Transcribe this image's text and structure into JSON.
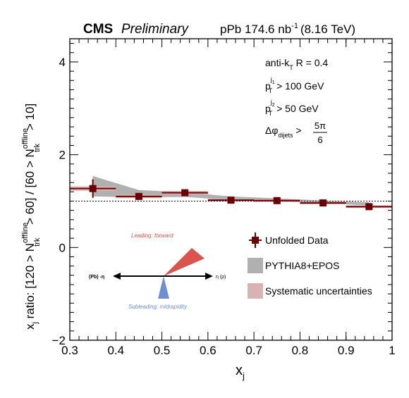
{
  "chart_data": {
    "type": "scatter",
    "header": {
      "experiment": "CMS",
      "status": "Preliminary",
      "lumi_prefix": "pPb 174.6 nb",
      "lumi_exp": "-1",
      "energy": "(8.16 TeV)"
    },
    "xlabel": {
      "base": "x",
      "sub": "j"
    },
    "ylabel": {
      "p1": "x",
      "p1sub": "j",
      "p2": " ratio: [120 > N",
      "p3sup": "offline",
      "p3sub": "trk",
      "p4": " > 60] / [60 > N",
      "p5sup": "offline",
      "p5sub": "trk",
      "p6": " > 10]"
    },
    "xlim": [
      0.3,
      1.0
    ],
    "ylim": [
      -2,
      4.5
    ],
    "xticks": [
      "0.3",
      "0.4",
      "0.5",
      "0.6",
      "0.7",
      "0.8",
      "0.9",
      "1"
    ],
    "yticks": [
      "−2",
      "0",
      "2",
      "4"
    ],
    "reference_line": 1,
    "cuts": {
      "line1": {
        "a": "anti-k",
        "asub": "T",
        "b": " R = 0.4"
      },
      "line2": {
        "a": "p",
        "asup": "j",
        "asupsub": "1",
        "asub": "T",
        "b": " > 100 GeV"
      },
      "line3": {
        "a": "p",
        "asup": "j",
        "asupsub": "2",
        "asub": "T",
        "b": " > 50 GeV"
      },
      "line4": {
        "a": "Δφ",
        "asub": "dijets",
        "b": " > ",
        "num": "5π",
        "den": "6"
      }
    },
    "series": [
      {
        "name": "Unfolded Data",
        "color": "#6b0000",
        "x": [
          0.35,
          0.45,
          0.55,
          0.65,
          0.75,
          0.85,
          0.95
        ],
        "y": [
          1.27,
          1.1,
          1.18,
          1.02,
          1.01,
          0.96,
          0.88
        ],
        "xerr": 0.05,
        "yerr": [
          0.2,
          0.07,
          0.06,
          0.04,
          0.04,
          0.05,
          0.03
        ],
        "syst": [
          0.05,
          0.04,
          0.04,
          0.03,
          0.03,
          0.03,
          0.03
        ]
      },
      {
        "name": "PYTHIA8+EPOS",
        "color": "#b0b0b0",
        "x": [
          0.35,
          0.45,
          0.55,
          0.65,
          0.75,
          0.85,
          0.95
        ],
        "y": [
          1.32,
          1.16,
          1.14,
          1.06,
          1.03,
          0.98,
          0.94
        ],
        "band": [
          0.22,
          0.08,
          0.05,
          0.04,
          0.03,
          0.03,
          0.03
        ]
      },
      {
        "name": "Systematic uncertainties",
        "color": "#d9b3b3"
      }
    ],
    "diagram": {
      "leading": "Leading: forward",
      "subleading": "Subleading: midrapidity",
      "left_label": "(Pb) -η",
      "right_label": "η (p)",
      "leading_color": "#d9534f",
      "subleading_color": "#6f8fd0"
    }
  }
}
